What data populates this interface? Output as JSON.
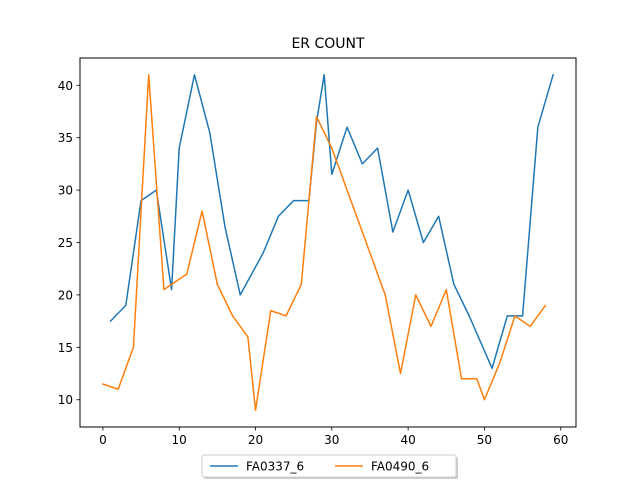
{
  "chart_data": {
    "type": "line",
    "title": "ER COUNT",
    "xlabel": "",
    "ylabel": "",
    "xlim": [
      -3.0,
      62.0
    ],
    "ylim": [
      7.4,
      42.6
    ],
    "x_ticks": [
      0,
      10,
      20,
      30,
      40,
      50,
      60
    ],
    "y_ticks": [
      10,
      15,
      20,
      25,
      30,
      35,
      40
    ],
    "grid": false,
    "legend_position": "lower-center",
    "series": [
      {
        "name": "FA0337_6",
        "color": "#1f77b4",
        "x": [
          1,
          3,
          5,
          7,
          9,
          10,
          12,
          14,
          16,
          18,
          21,
          23,
          25,
          27,
          28,
          29,
          30,
          32,
          34,
          36,
          38,
          40,
          42,
          44,
          46,
          48,
          51,
          53,
          55,
          57,
          59
        ],
        "y": [
          17.5,
          19,
          29,
          30,
          20.5,
          34,
          41,
          35.5,
          26.5,
          20,
          24,
          27.5,
          29,
          29,
          36.5,
          41,
          31.5,
          36,
          32.5,
          34,
          26,
          30,
          25,
          27.5,
          21,
          18,
          13,
          18,
          18,
          36,
          41
        ]
      },
      {
        "name": "FA0490_6",
        "color": "#ff7f0e",
        "x": [
          0,
          2,
          4,
          6,
          8,
          11,
          13,
          15,
          17,
          19,
          20,
          22,
          24,
          26,
          28,
          30,
          37,
          39,
          41,
          43,
          45,
          47,
          49,
          50,
          52,
          54,
          56,
          58
        ],
        "y": [
          11.5,
          11,
          15,
          41,
          20.5,
          22,
          28,
          21,
          18,
          16,
          9,
          18.5,
          18,
          21,
          37,
          34,
          20,
          12.5,
          20,
          17,
          20.5,
          12,
          12,
          10,
          13.5,
          18,
          17,
          19
        ]
      }
    ]
  }
}
